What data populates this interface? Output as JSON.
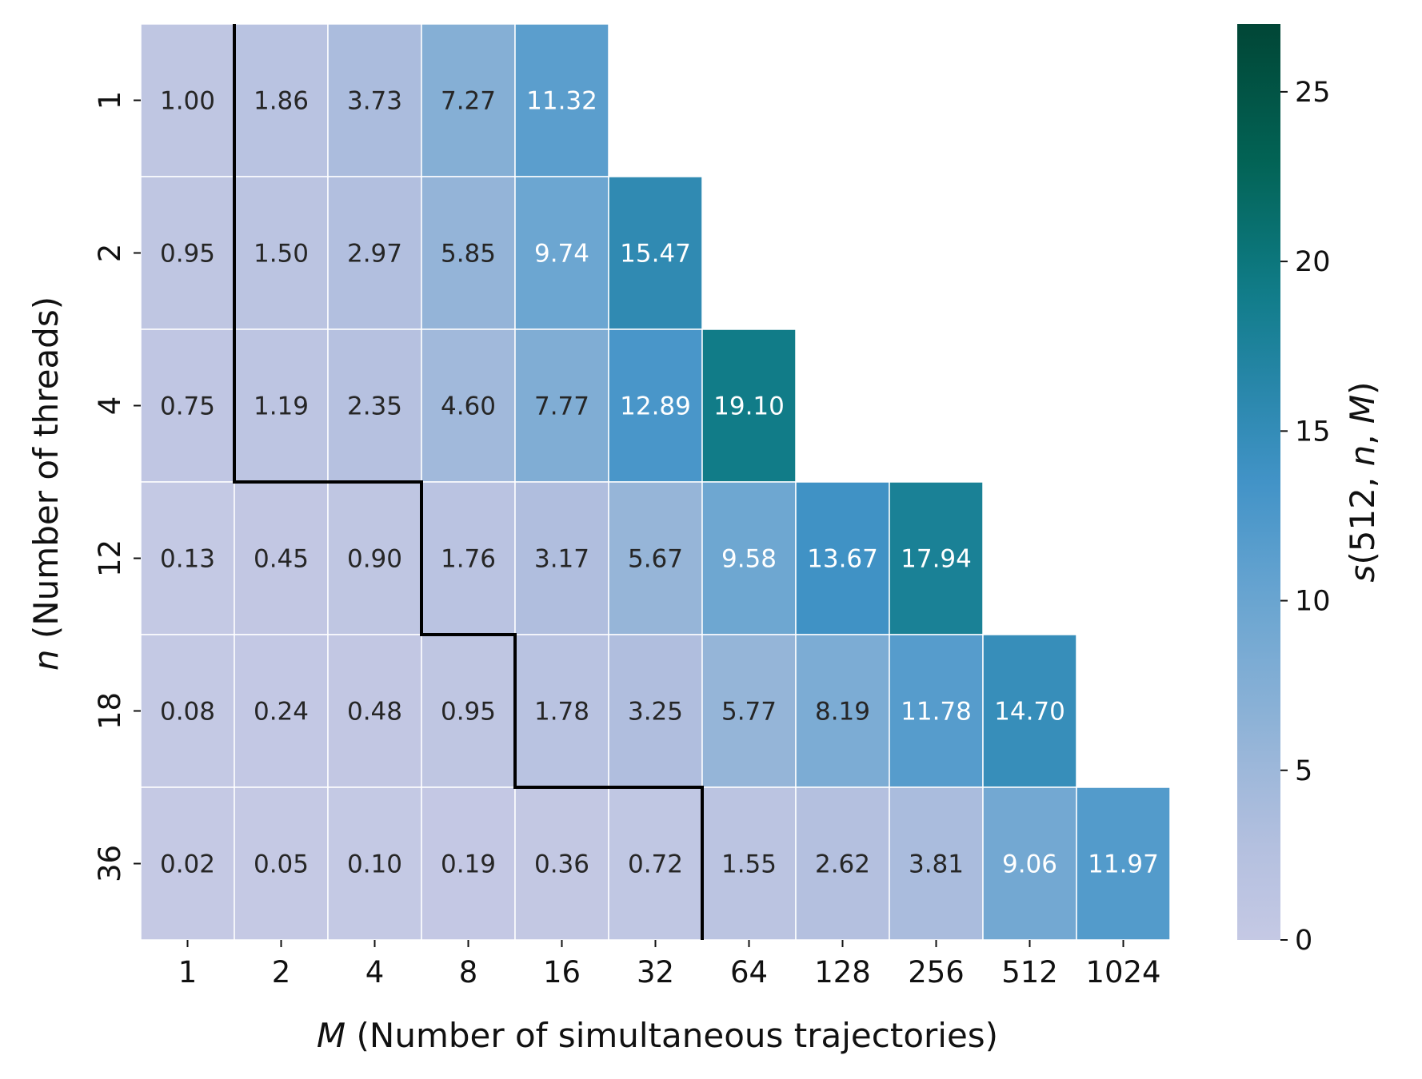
{
  "chart_data": {
    "type": "heatmap",
    "x_categories": [
      "1",
      "2",
      "4",
      "8",
      "16",
      "32",
      "64",
      "128",
      "256",
      "512",
      "1024"
    ],
    "y_categories": [
      "1",
      "2",
      "4",
      "12",
      "18",
      "36"
    ],
    "values": [
      [
        1.0,
        1.86,
        3.73,
        7.27,
        11.32,
        null,
        null,
        null,
        null,
        null,
        null
      ],
      [
        0.95,
        1.5,
        2.97,
        5.85,
        9.74,
        15.47,
        null,
        null,
        null,
        null,
        null
      ],
      [
        0.75,
        1.19,
        2.35,
        4.6,
        7.77,
        12.89,
        19.1,
        null,
        null,
        null,
        null
      ],
      [
        0.13,
        0.45,
        0.9,
        1.76,
        3.17,
        5.67,
        9.58,
        13.67,
        17.94,
        null,
        null
      ],
      [
        0.08,
        0.24,
        0.48,
        0.95,
        1.78,
        3.25,
        5.77,
        8.19,
        11.78,
        14.7,
        null
      ],
      [
        0.02,
        0.05,
        0.1,
        0.19,
        0.36,
        0.72,
        1.55,
        2.62,
        3.81,
        9.06,
        11.97
      ]
    ],
    "value_labels": [
      [
        "1.00",
        "1.86",
        "3.73",
        "7.27",
        "11.32",
        "",
        "",
        "",
        "",
        "",
        ""
      ],
      [
        "0.95",
        "1.50",
        "2.97",
        "5.85",
        "9.74",
        "15.47",
        "",
        "",
        "",
        "",
        ""
      ],
      [
        "0.75",
        "1.19",
        "2.35",
        "4.60",
        "7.77",
        "12.89",
        "19.10",
        "",
        "",
        "",
        ""
      ],
      [
        "0.13",
        "0.45",
        "0.90",
        "1.76",
        "3.17",
        "5.67",
        "9.58",
        "13.67",
        "17.94",
        "",
        ""
      ],
      [
        "0.08",
        "0.24",
        "0.48",
        "0.95",
        "1.78",
        "3.25",
        "5.77",
        "8.19",
        "11.78",
        "14.70",
        ""
      ],
      [
        "0.02",
        "0.05",
        "0.10",
        "0.19",
        "0.36",
        "0.72",
        "1.55",
        "2.62",
        "3.81",
        "9.06",
        "11.97"
      ]
    ],
    "xlabel": "M (Number of simultaneous trajectories)",
    "xlabel_italic_part": "M",
    "ylabel": "n (Number of threads)",
    "ylabel_italic_part": "n",
    "colorbar_label": "s(512, n, M)",
    "colorbar_ticks": [
      0,
      5,
      10,
      15,
      20,
      25
    ],
    "color_range": [
      0,
      27
    ],
    "colormap": "PuBuGn",
    "boundary_line": {
      "description": "staircase separating regions",
      "per_row_boundary_column_index": [
        1,
        1,
        1,
        3,
        4,
        6
      ]
    }
  }
}
